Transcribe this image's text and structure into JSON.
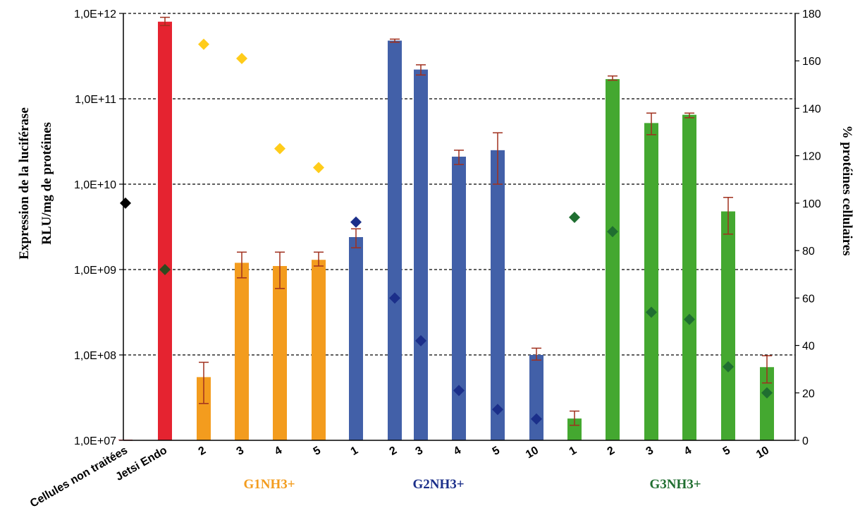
{
  "chart_data": {
    "type": "bar",
    "left_axis": {
      "label_line1": "Expression de la luciférase",
      "label_line2": "RLU/mg de protéines",
      "scale": "log",
      "ylim": [
        10000000,
        1000000000000
      ],
      "ticks": [
        {
          "value": 10000000,
          "label": "1,0E+07"
        },
        {
          "value": 100000000,
          "label": "1,0E+08"
        },
        {
          "value": 1000000000,
          "label": "1,0E+09"
        },
        {
          "value": 10000000000,
          "label": "1,0E+10"
        },
        {
          "value": 100000000000,
          "label": "1,0E+11"
        },
        {
          "value": 1000000000000,
          "label": "1,0E+12"
        }
      ]
    },
    "right_axis": {
      "label": "% protéines cellulaires",
      "scale": "linear",
      "ylim": [
        0,
        180
      ],
      "ticks": [
        0,
        20,
        40,
        60,
        80,
        100,
        120,
        140,
        160,
        180
      ]
    },
    "grid": "dashed horizontal at each decade",
    "categories": [
      {
        "label": "Cellules non traitées",
        "group": "",
        "color": "#e52330",
        "value": 10000000,
        "err_low": null,
        "err_high": null,
        "pct": 100,
        "marker_color": "#000000"
      },
      {
        "label": "Jetsi Endo",
        "group": "",
        "color": "#e52330",
        "value": 800000000000,
        "err_low": 720000000000,
        "err_high": 900000000000,
        "pct": 72,
        "marker_color": "#2e4a1e"
      },
      {
        "label": "2",
        "group": "G1NH3+",
        "color": "#f39c1e",
        "value": 55000000,
        "err_low": 27000000,
        "err_high": 82000000,
        "pct": 167,
        "marker_color": "#ffcc1a"
      },
      {
        "label": "3",
        "group": "G1NH3+",
        "color": "#f39c1e",
        "value": 1200000000,
        "err_low": 800000000,
        "err_high": 1600000000,
        "pct": 161,
        "marker_color": "#ffcc1a"
      },
      {
        "label": "4",
        "group": "G1NH3+",
        "color": "#f39c1e",
        "value": 1100000000,
        "err_low": 600000000,
        "err_high": 1600000000,
        "pct": 123,
        "marker_color": "#ffcc1a"
      },
      {
        "label": "5",
        "group": "G1NH3+",
        "color": "#f39c1e",
        "value": 1300000000,
        "err_low": 1100000000,
        "err_high": 1600000000,
        "pct": 115,
        "marker_color": "#ffcc1a"
      },
      {
        "label": "1",
        "group": "G2NH3+",
        "color": "#4260a8",
        "value": 2400000000,
        "err_low": 1800000000,
        "err_high": 3000000000,
        "pct": 92,
        "marker_color": "#1b2f8a"
      },
      {
        "label": "2",
        "group": "G2NH3+",
        "color": "#4260a8",
        "value": 480000000000,
        "err_low": 460000000000,
        "err_high": 500000000000,
        "pct": 60,
        "marker_color": "#1b2f8a"
      },
      {
        "label": "3",
        "group": "G2NH3+",
        "color": "#4260a8",
        "value": 220000000000,
        "err_low": 190000000000,
        "err_high": 250000000000,
        "pct": 42,
        "marker_color": "#1b2f8a"
      },
      {
        "label": "4",
        "group": "G2NH3+",
        "color": "#4260a8",
        "value": 21000000000,
        "err_low": 17000000000,
        "err_high": 25000000000,
        "pct": 21,
        "marker_color": "#1b2f8a"
      },
      {
        "label": "5",
        "group": "G2NH3+",
        "color": "#4260a8",
        "value": 25000000000,
        "err_low": 10000000000,
        "err_high": 40000000000,
        "pct": 13,
        "marker_color": "#1b2f8a"
      },
      {
        "label": "10",
        "group": "G2NH3+",
        "color": "#4260a8",
        "value": 100000000,
        "err_low": 87000000,
        "err_high": 120000000,
        "pct": 9,
        "marker_color": "#1b2f8a"
      },
      {
        "label": "1",
        "group": "G3NH3+",
        "color": "#44a830",
        "value": 18000000,
        "err_low": 15000000,
        "err_high": 22000000,
        "pct": 94,
        "marker_color": "#1f6e30"
      },
      {
        "label": "2",
        "group": "G3NH3+",
        "color": "#44a830",
        "value": 170000000000,
        "err_low": 165000000000,
        "err_high": 185000000000,
        "pct": 88,
        "marker_color": "#1f6e30"
      },
      {
        "label": "3",
        "group": "G3NH3+",
        "color": "#44a830",
        "value": 52000000000,
        "err_low": 38000000000,
        "err_high": 68000000000,
        "pct": 54,
        "marker_color": "#1f6e30"
      },
      {
        "label": "4",
        "group": "G3NH3+",
        "color": "#44a830",
        "value": 65000000000,
        "err_low": 60000000000,
        "err_high": 68000000000,
        "pct": 51,
        "marker_color": "#1f6e30"
      },
      {
        "label": "5",
        "group": "G3NH3+",
        "color": "#44a830",
        "value": 4800000000,
        "err_low": 2600000000,
        "err_high": 7000000000,
        "pct": 31,
        "marker_color": "#1f6e30"
      },
      {
        "label": "10",
        "group": "G3NH3+",
        "color": "#44a830",
        "value": 72000000,
        "err_low": 47000000,
        "err_high": 98000000,
        "pct": 20,
        "marker_color": "#1f6e30"
      }
    ],
    "groups": [
      {
        "name": "G1NH3+",
        "color": "#f39c1e"
      },
      {
        "name": "G2NH3+",
        "color": "#1b2f8a"
      },
      {
        "name": "G3NH3+",
        "color": "#1f6e30"
      }
    ],
    "errorbar_color": "#a0301e"
  }
}
